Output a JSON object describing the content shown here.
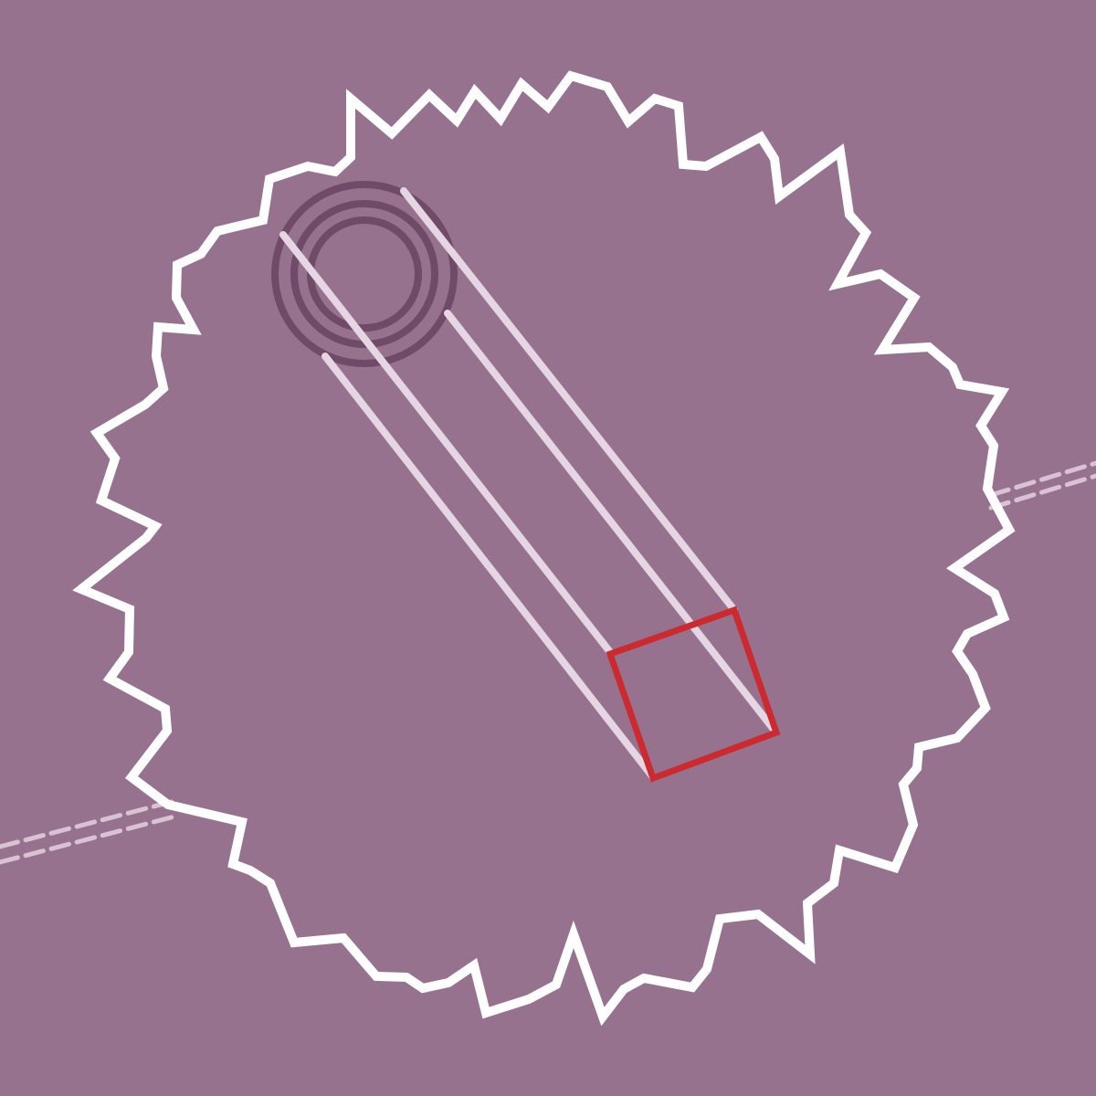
{
  "palette": {
    "background": "#96728E",
    "burst_stroke": "#FFFFFF",
    "beam_stroke": "#E4D6E2",
    "ring_stroke": "#6F4A69",
    "box_stroke": "#CC2A2E",
    "dash_stroke": "#D8C2D3"
  },
  "elements": {
    "burst": "jagged-burst-outline",
    "rings": "concentric-rings",
    "beams": "diagonal-beam-lines",
    "box": "red-square-outline",
    "dashes": "dashed-diagonal-lines"
  }
}
